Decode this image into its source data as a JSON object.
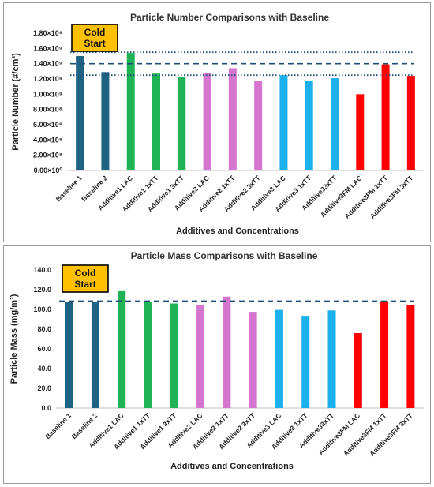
{
  "chart_data": [
    {
      "type": "bar",
      "title": "Particle Number Comparisons with Baseline",
      "xlabel": "Additives and Concentrations",
      "ylabel": "Particle Number (#/cm³)",
      "ylim": [
        0,
        1800000000.0
      ],
      "y_ticks": [
        "0.00×10⁰",
        "2.00×10⁸",
        "4.00×10⁸",
        "6.00×10⁸",
        "8.00×10⁸",
        "1.00×10⁹",
        "1.20×10⁹",
        "1.40×10⁹",
        "1.60×10⁹",
        "1.80×10⁹"
      ],
      "categories": [
        "Baseline 1",
        "Baseline 2",
        "Additive1 LAC",
        "Additive1 1xTT",
        "Additive1 3xTT",
        "Additive2 LAC",
        "Additive2 1xTT",
        "Additive2 3xTT",
        "Additive3 LAC",
        "Additive3 1xTT",
        "Additive33xTT",
        "Additive3FM LAC",
        "Additive3FM 1xTT",
        "Additive3FM 3xTT"
      ],
      "values": [
        1500000000.0,
        1290000000.0,
        1540000000.0,
        1270000000.0,
        1230000000.0,
        1280000000.0,
        1340000000.0,
        1170000000.0,
        1250000000.0,
        1180000000.0,
        1210000000.0,
        1000000000.0,
        1390000000.0,
        1240000000.0
      ],
      "colors": [
        "#1f6384",
        "#1f6384",
        "#1fb355",
        "#1fb355",
        "#1fb355",
        "#d575d0",
        "#d575d0",
        "#d575d0",
        "#1cb0ec",
        "#1cb0ec",
        "#1cb0ec",
        "#ff0000",
        "#ff0000",
        "#ff0000"
      ],
      "reference_lines": [
        {
          "value": 1550000000.0,
          "style": "dotted"
        },
        {
          "value": 1400000000.0,
          "style": "dashed"
        },
        {
          "value": 1250000000.0,
          "style": "dotted"
        }
      ],
      "annotation": {
        "line1": "Cold",
        "line2": "Start",
        "background": "#ffc000"
      },
      "grid": false,
      "legend": "none"
    },
    {
      "type": "bar",
      "title": "Particle Mass Comparisons with Baseline",
      "xlabel": "Additives and Concentrations",
      "ylabel": "Particle Mass (mg/m³)",
      "ylim": [
        0,
        140
      ],
      "y_ticks": [
        "0.0",
        "20.0",
        "40.0",
        "60.0",
        "80.0",
        "100.0",
        "120.0",
        "140.0"
      ],
      "categories": [
        "Baseline 1",
        "Baseline 2",
        "Additive1 LAC",
        "Additive1 1xTT",
        "Additive1 3xTT",
        "Additive2 LAC",
        "Additive2 1xTT",
        "Additive2 3xTT",
        "Additive3 LAC",
        "Additive3 1xTT",
        "Additive33xTT",
        "Additive3FM LAC",
        "Additive3FM 1xTT",
        "Additive3FM 3xTT"
      ],
      "values": [
        108,
        108,
        118.5,
        108,
        106,
        104,
        113,
        97.5,
        99.5,
        93.5,
        99,
        76,
        108.5,
        104
      ],
      "colors": [
        "#1f6384",
        "#1f6384",
        "#1fb355",
        "#1fb355",
        "#1fb355",
        "#d575d0",
        "#d575d0",
        "#d575d0",
        "#1cb0ec",
        "#1cb0ec",
        "#1cb0ec",
        "#ff0000",
        "#ff0000",
        "#ff0000"
      ],
      "reference_lines": [
        {
          "value": 108.5,
          "style": "dashed"
        }
      ],
      "annotation": {
        "line1": "Cold",
        "line2": "Start",
        "background": "#ffc000"
      },
      "grid": false,
      "legend": "none"
    }
  ]
}
